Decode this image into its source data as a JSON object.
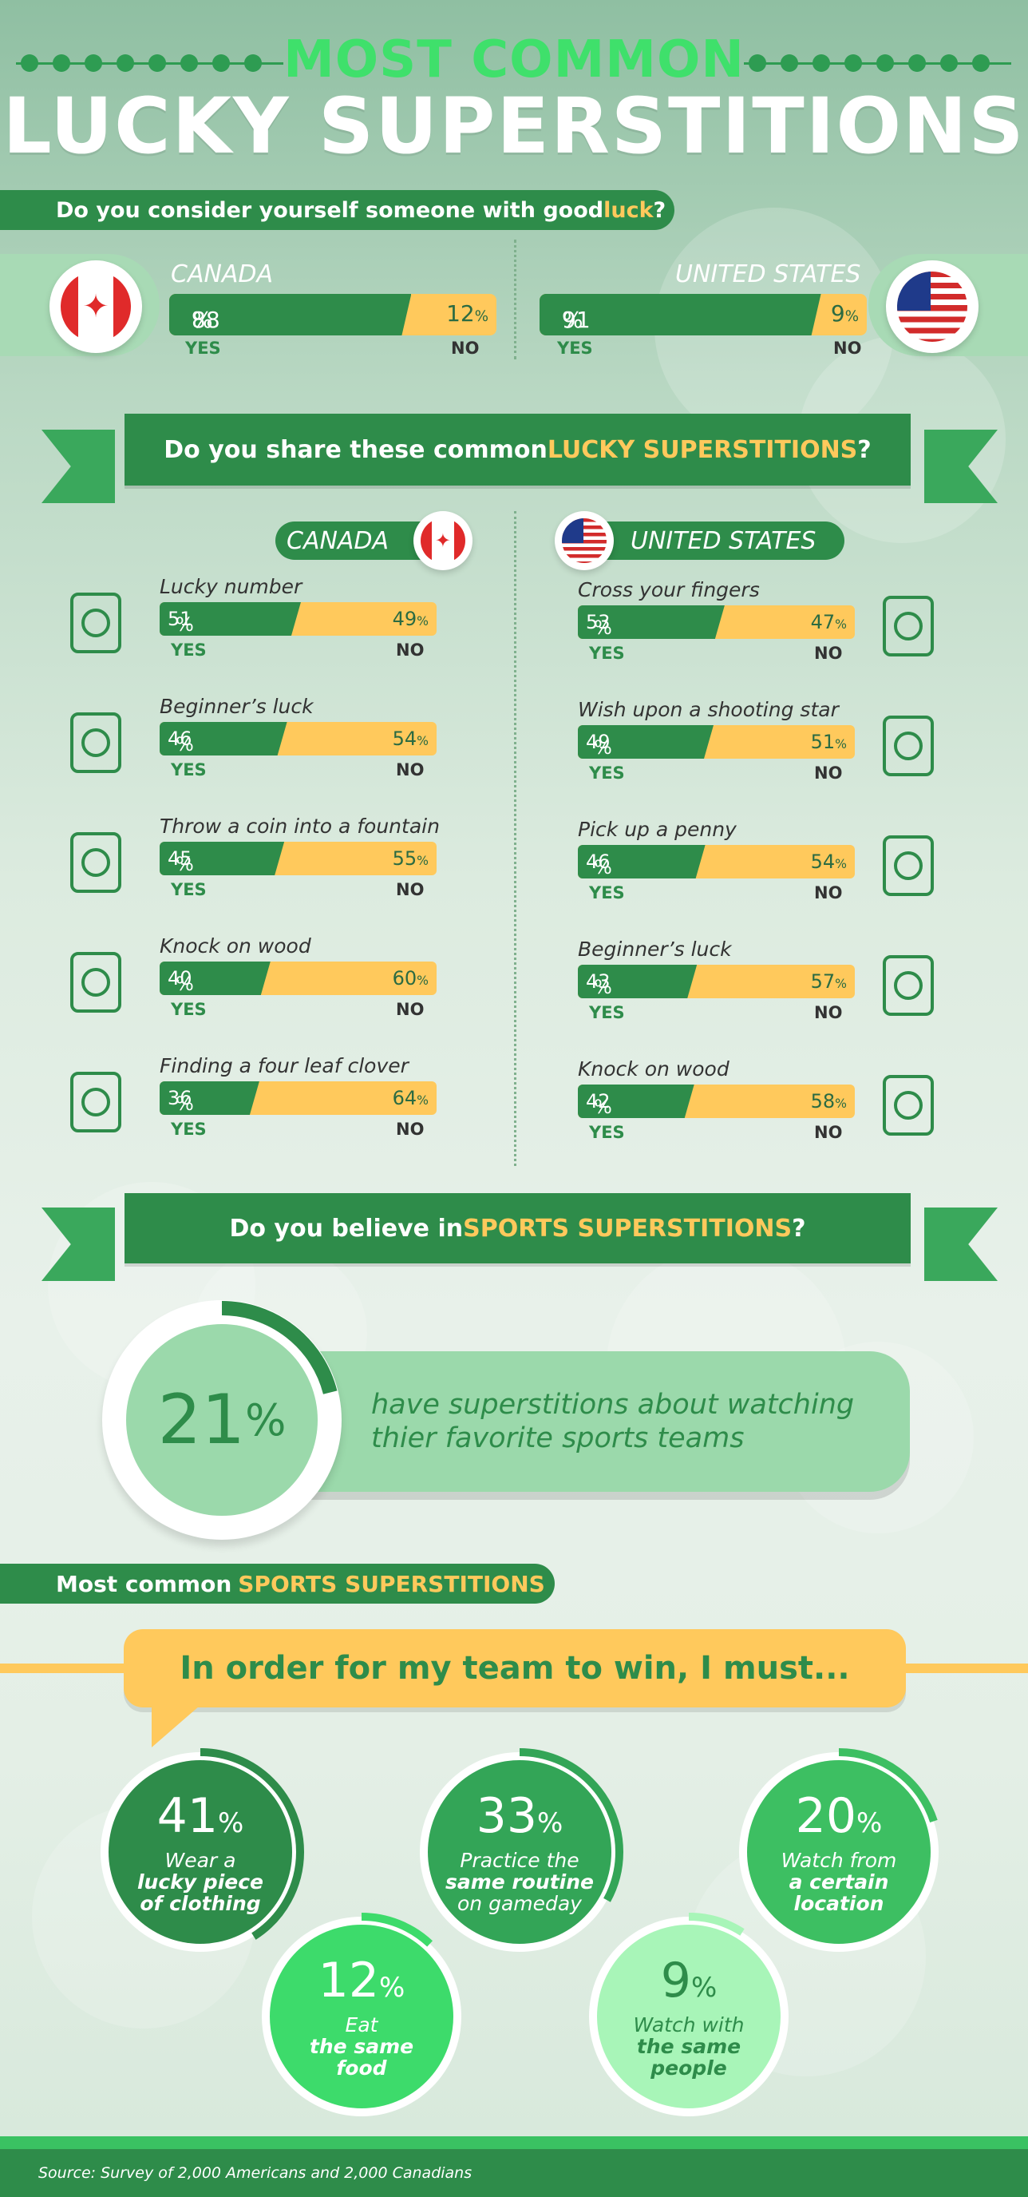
{
  "header": {
    "top_title": "MOST COMMON",
    "main_title": "LUCKY SUPERSTITIONS"
  },
  "section1": {
    "question_pre": "Do you consider yourself someone with good ",
    "question_hl": "luck",
    "question_post": "?",
    "canada": {
      "name": "CANADA",
      "yes": "88",
      "no": "12"
    },
    "us": {
      "name": "UNITED STATES",
      "yes": "91",
      "no": "9"
    },
    "yes_label": "YES",
    "no_label": "NO"
  },
  "section2": {
    "question_pre": "Do you share these common ",
    "question_hl": "LUCKY SUPERSTITIONS",
    "question_post": "?",
    "canada_label": "CANADA",
    "us_label": "UNITED STATES",
    "canada_items": [
      {
        "title": "Lucky number",
        "yes": "51",
        "no": "49",
        "icon": "lucky-seven-icon"
      },
      {
        "title": "Beginner’s luck",
        "yes": "46",
        "no": "54",
        "icon": "playing-cards-icon"
      },
      {
        "title": "Throw a coin into a fountain",
        "yes": "45",
        "no": "55",
        "icon": "thumb-coin-icon"
      },
      {
        "title": "Knock on wood",
        "yes": "40",
        "no": "60",
        "icon": "knock-wood-icon"
      },
      {
        "title": "Finding a four leaf clover",
        "yes": "36",
        "no": "64",
        "icon": "four-leaf-clover-icon"
      }
    ],
    "us_items": [
      {
        "title": "Cross your fingers",
        "yes": "53",
        "no": "47",
        "icon": "crossed-fingers-icon"
      },
      {
        "title": "Wish upon a shooting star",
        "yes": "49",
        "no": "51",
        "icon": "shooting-star-icon"
      },
      {
        "title": "Pick up a penny",
        "yes": "46",
        "no": "54",
        "icon": "penny-hand-icon"
      },
      {
        "title": "Beginner’s luck",
        "yes": "43",
        "no": "57",
        "icon": "playing-cards-icon"
      },
      {
        "title": "Knock on wood",
        "yes": "42",
        "no": "58",
        "icon": "knock-wood-icon"
      }
    ]
  },
  "section3": {
    "question_pre": "Do you believe in ",
    "question_hl": "SPORTS SUPERSTITIONS",
    "question_post": "?",
    "stat": "21",
    "stat_text_line1": "have superstitions about watching",
    "stat_text_line2": "thier favorite sports teams"
  },
  "section4": {
    "heading_pre": "Most common ",
    "heading_hl": "SPORTS SUPERSTITIONS",
    "speech": "In order for my team to win, I must...",
    "stats": [
      {
        "num": "41",
        "line1": "Wear a",
        "line2": "lucky piece",
        "line3": "of clothing",
        "color": "#2e8c4a"
      },
      {
        "num": "33",
        "line1": "Practice the",
        "line2": "same routine",
        "line3": "on gameday",
        "color": "#33a557"
      },
      {
        "num": "20",
        "line1": "Watch from",
        "line2": "a certain",
        "line3": "location",
        "color": "#3dbf62"
      },
      {
        "num": "12",
        "line1": "Eat",
        "line2": "the same",
        "line3": "food",
        "color": "#3ddb6b"
      },
      {
        "num": "9",
        "line1": "Watch with",
        "line2": "the same",
        "line3": "people",
        "color": "#a8f5b8"
      }
    ]
  },
  "footer": {
    "source": "Source: Survey of 2,000 Americans and 2,000 Canadians"
  },
  "colors": {
    "green_dark": "#2e8c4a",
    "green_bright": "#3fe06b",
    "orange": "#ffc95c"
  },
  "percent_sign": "%"
}
